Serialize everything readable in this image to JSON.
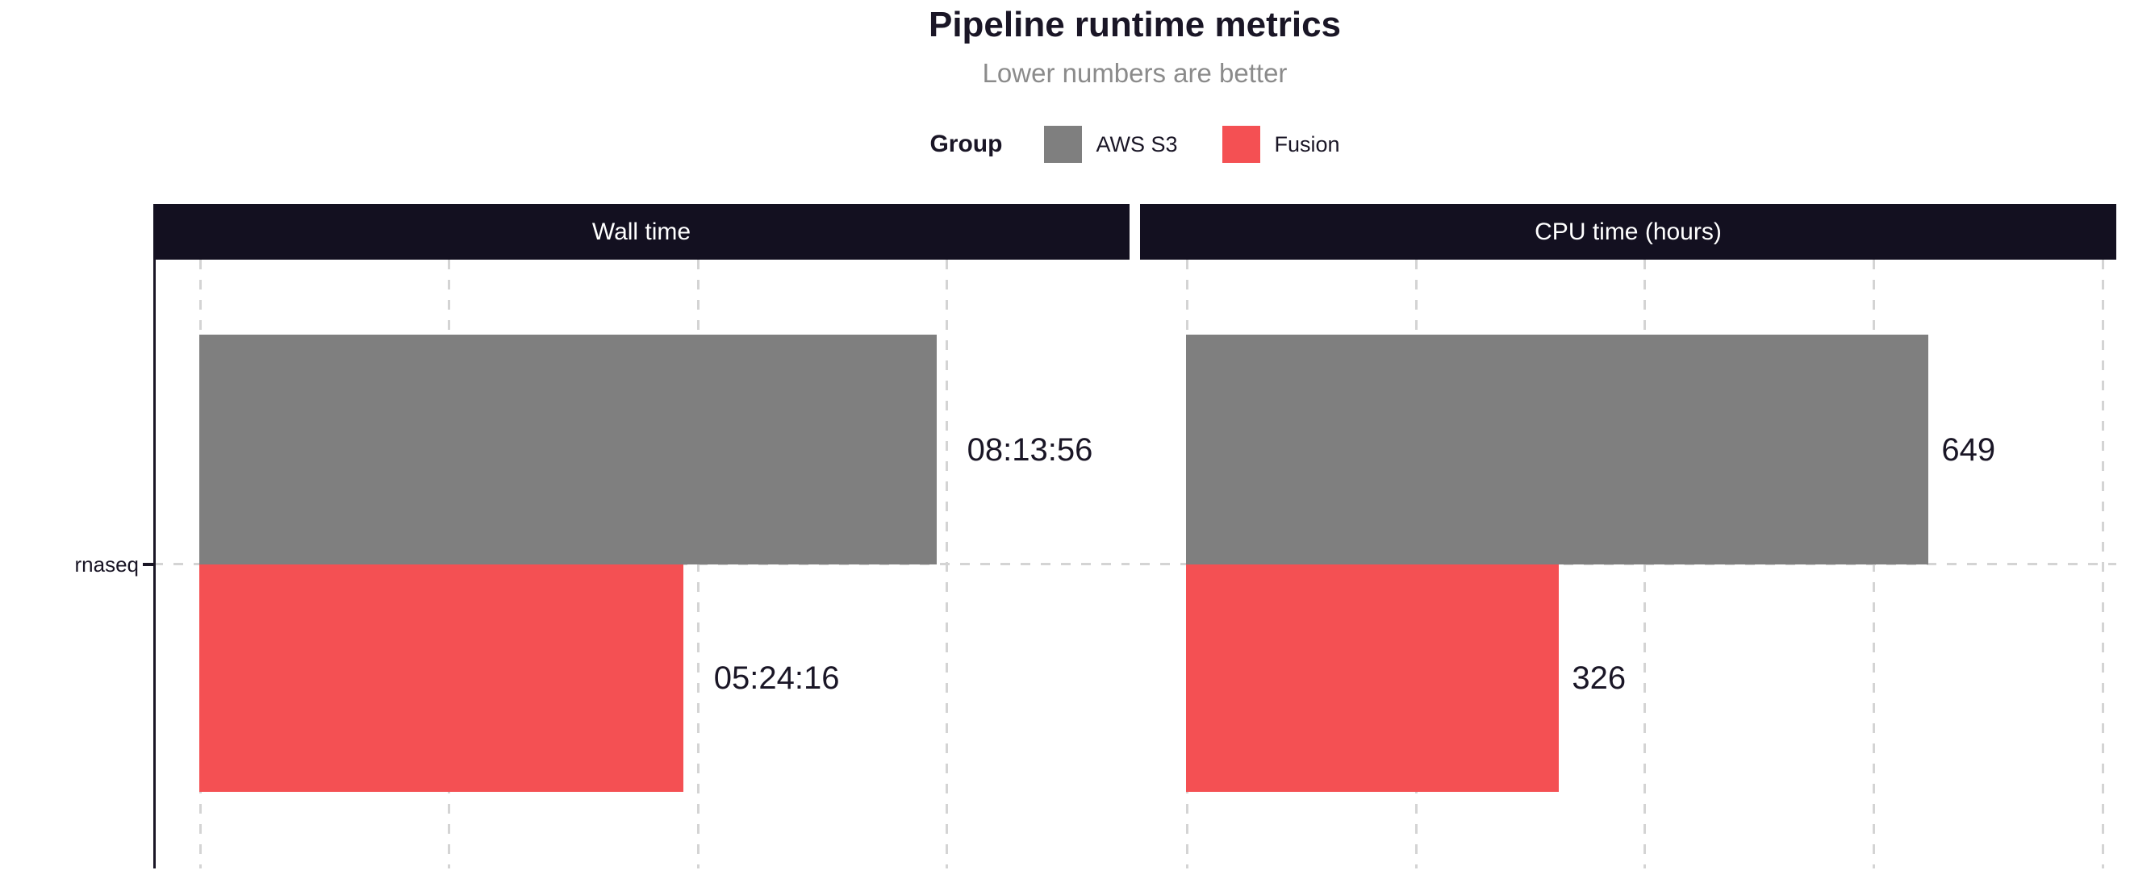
{
  "title": "Pipeline runtime metrics",
  "subtitle": "Lower numbers are better",
  "legend": {
    "title": "Group",
    "items": [
      {
        "label": "AWS S3",
        "color": "#7f7f7f"
      },
      {
        "label": "Fusion",
        "color": "#f45053"
      }
    ]
  },
  "y_axis": {
    "category": "rnaseq"
  },
  "colors": {
    "background": "#ffffff",
    "header_bg": "#131020",
    "header_text": "#ffffff",
    "gridline": "#d4d4d4",
    "axis": "#1a1626",
    "text_dark": "#1a1626",
    "subtitle_gray": "#8b8b8b",
    "aws_s3": "#7f7f7f",
    "fusion": "#f45053"
  },
  "chart_data": {
    "type": "bar",
    "orientation": "horizontal",
    "title": "Pipeline runtime metrics",
    "subtitle": "Lower numbers are better",
    "legend_title": "Group",
    "legend_position": "top",
    "grid": "dashed",
    "categories": [
      "rnaseq"
    ],
    "panels": [
      {
        "title": "Wall time",
        "unit": "seconds",
        "axis_range": [
          0,
          37400
        ],
        "gridline_values": [
          0,
          10000,
          20000,
          30000
        ],
        "series": [
          {
            "name": "AWS S3",
            "category": "rnaseq",
            "value": 29636,
            "label": "08:13:56",
            "color": "#7f7f7f"
          },
          {
            "name": "Fusion",
            "category": "rnaseq",
            "value": 19456,
            "label": "05:24:16",
            "color": "#f45053"
          }
        ]
      },
      {
        "title": "CPU time (hours)",
        "unit": "hours",
        "axis_range": [
          0,
          813
        ],
        "gridline_values": [
          0,
          200,
          400,
          600,
          800
        ],
        "series": [
          {
            "name": "AWS S3",
            "category": "rnaseq",
            "value": 649,
            "label": "649",
            "color": "#7f7f7f"
          },
          {
            "name": "Fusion",
            "category": "rnaseq",
            "value": 326,
            "label": "326",
            "color": "#f45053"
          }
        ]
      }
    ]
  }
}
